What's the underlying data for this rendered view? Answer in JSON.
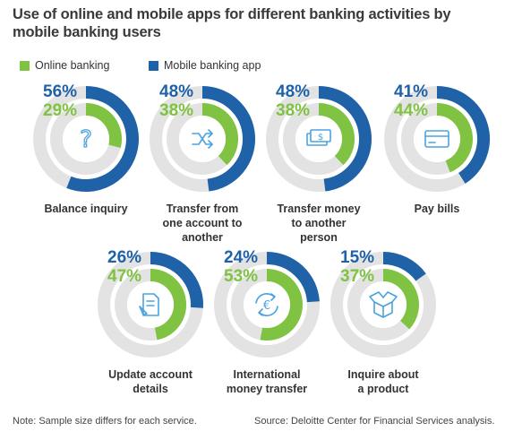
{
  "title": "Use of online and mobile apps for different banking activities by mobile banking users",
  "legend": {
    "online": "Online banking",
    "mobile": "Mobile banking app"
  },
  "colors": {
    "online": "#80c342",
    "mobile": "#1f62a8",
    "track": "#e3e3e3",
    "icon": "#4aa3df"
  },
  "chart_data": {
    "type": "donut",
    "title": "Use of online and mobile apps for different banking activities by mobile banking users",
    "series": [
      {
        "name": "Online banking",
        "values": [
          29,
          38,
          38,
          44,
          47,
          53,
          37
        ]
      },
      {
        "name": "Mobile banking app",
        "values": [
          56,
          48,
          48,
          41,
          26,
          24,
          15
        ]
      }
    ],
    "categories": [
      "Balance inquiry",
      "Transfer from one account to another",
      "Transfer money to another person",
      "Pay bills",
      "Update account details",
      "International money transfer",
      "Inquire about a product"
    ],
    "items": [
      {
        "category": "Balance inquiry",
        "label_lines": [
          "Balance inquiry"
        ],
        "mobile": 56,
        "online": 29,
        "mobile_text": "56%",
        "online_text": "29%",
        "icon": "question-mark-icon"
      },
      {
        "category": "Transfer from one account to another",
        "label_lines": [
          "Transfer from",
          "one account to",
          "another"
        ],
        "mobile": 48,
        "online": 38,
        "mobile_text": "48%",
        "online_text": "38%",
        "icon": "shuffle-arrows-icon"
      },
      {
        "category": "Transfer money to another person",
        "label_lines": [
          "Transfer money",
          "to another",
          "person"
        ],
        "mobile": 48,
        "online": 38,
        "mobile_text": "48%",
        "online_text": "38%",
        "icon": "money-bills-icon"
      },
      {
        "category": "Pay bills",
        "label_lines": [
          "Pay bills"
        ],
        "mobile": 41,
        "online": 44,
        "mobile_text": "41%",
        "online_text": "44%",
        "icon": "card-icon"
      },
      {
        "category": "Update account details",
        "label_lines": [
          "Update account",
          "details"
        ],
        "mobile": 26,
        "online": 47,
        "mobile_text": "26%",
        "online_text": "47%",
        "icon": "document-edit-icon"
      },
      {
        "category": "International money transfer",
        "label_lines": [
          "International",
          "money transfer"
        ],
        "mobile": 24,
        "online": 53,
        "mobile_text": "24%",
        "online_text": "53%",
        "icon": "euro-exchange-icon"
      },
      {
        "category": "Inquire about a product",
        "label_lines": [
          "Inquire about",
          "a product"
        ],
        "mobile": 15,
        "online": 37,
        "mobile_text": "15%",
        "online_text": "37%",
        "icon": "open-box-icon"
      }
    ]
  },
  "note": "Note: Sample size differs for each service.",
  "source": "Source: Deloitte Center for Financial Services analysis."
}
